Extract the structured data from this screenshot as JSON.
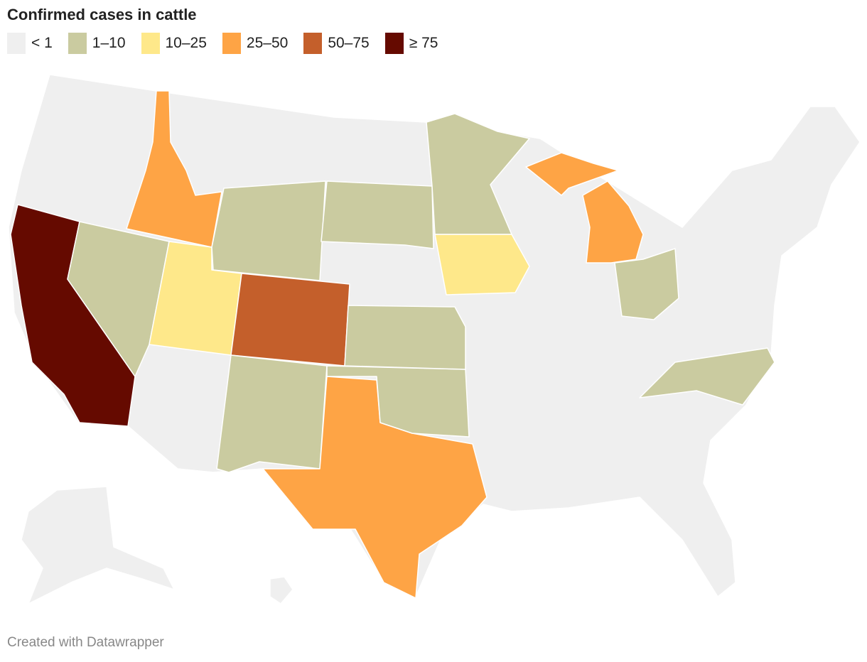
{
  "title": "Confirmed cases in cattle",
  "legend": {
    "items": [
      {
        "label": "< 1",
        "color": "#efefef"
      },
      {
        "label": "1–10",
        "color": "#cacba0"
      },
      {
        "label": "10–25",
        "color": "#fee88a"
      },
      {
        "label": "25–50",
        "color": "#fea445"
      },
      {
        "label": "50–75",
        "color": "#c45f2b"
      },
      {
        "label": "≥ 75",
        "color": "#650a00"
      }
    ]
  },
  "footer": "Created with Datawrapper"
}
